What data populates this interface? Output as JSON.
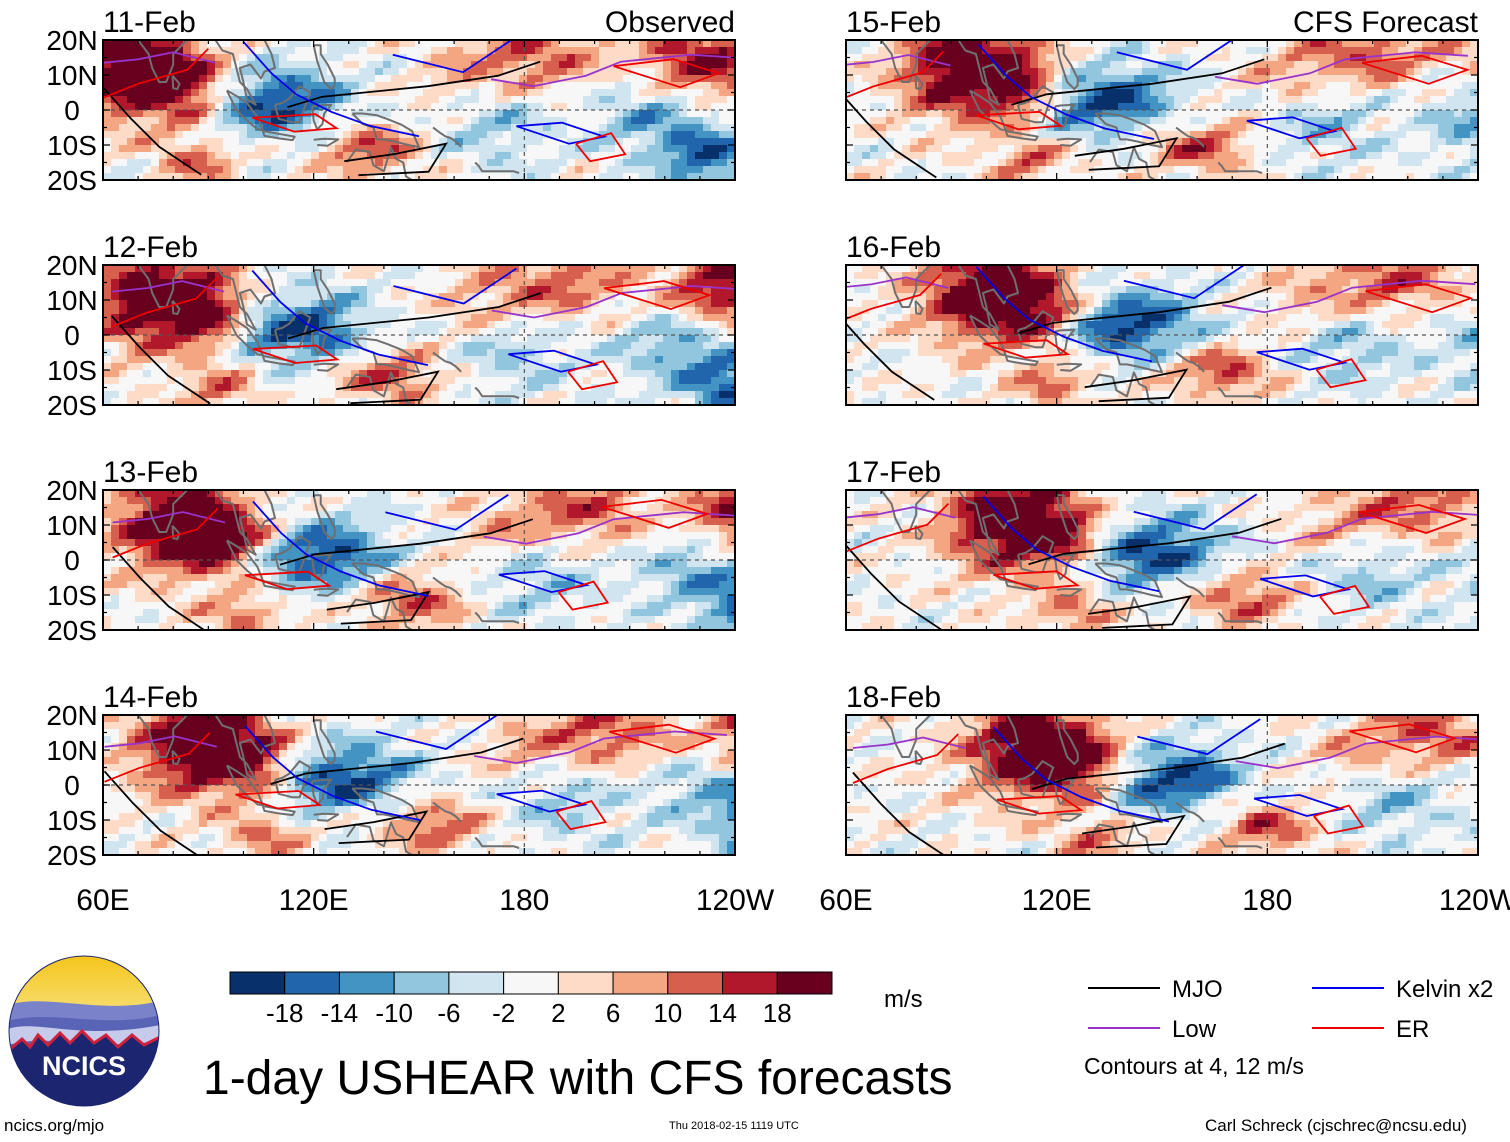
{
  "chart_data": {
    "type": "heatmap",
    "title": "1-day USHEAR with CFS forecasts",
    "variable": "USHEAR",
    "units": "m/s",
    "x_ticks": [
      "60E",
      "120E",
      "180",
      "120W"
    ],
    "y_ticks": [
      "20N",
      "10N",
      "0",
      "10S",
      "20S"
    ],
    "x_range_deg": [
      60,
      240
    ],
    "y_range_deg": [
      -20,
      20
    ],
    "colorbar": {
      "levels": [
        "-18",
        "-14",
        "-10",
        "-6",
        "-2",
        "2",
        "6",
        "10",
        "14",
        "18"
      ],
      "level_values": [
        -18,
        -14,
        -10,
        -6,
        -2,
        2,
        6,
        10,
        14,
        18
      ],
      "colors": [
        "#08306b",
        "#2166ac",
        "#4393c3",
        "#92c5de",
        "#d1e5f0",
        "#f7f7f7",
        "#fddbc7",
        "#f4a582",
        "#d6604d",
        "#b2182b",
        "#67001f"
      ]
    },
    "panels": [
      {
        "date": "11-Feb",
        "label": "Observed",
        "column": "left"
      },
      {
        "date": "12-Feb",
        "label": "",
        "column": "left"
      },
      {
        "date": "13-Feb",
        "label": "",
        "column": "left"
      },
      {
        "date": "14-Feb",
        "label": "",
        "column": "left"
      },
      {
        "date": "15-Feb",
        "label": "CFS Forecast",
        "column": "right"
      },
      {
        "date": "16-Feb",
        "label": "",
        "column": "right"
      },
      {
        "date": "17-Feb",
        "label": "",
        "column": "right"
      },
      {
        "date": "18-Feb",
        "label": "",
        "column": "right"
      }
    ],
    "legend": [
      {
        "name": "MJO",
        "color": "#000000"
      },
      {
        "name": "Kelvin x2",
        "color": "#0000ee"
      },
      {
        "name": "Low",
        "color": "#9933cc"
      },
      {
        "name": "ER",
        "color": "#ee0000"
      }
    ],
    "contour_note": "Contours at 4, 12 m/s"
  },
  "footer": {
    "left": "ncics.org/mjo",
    "center": "Thu 2018-02-15 1119 UTC",
    "right": "Carl Schreck (cjschrec@ncsu.edu)"
  },
  "logo_text": "NCICS"
}
